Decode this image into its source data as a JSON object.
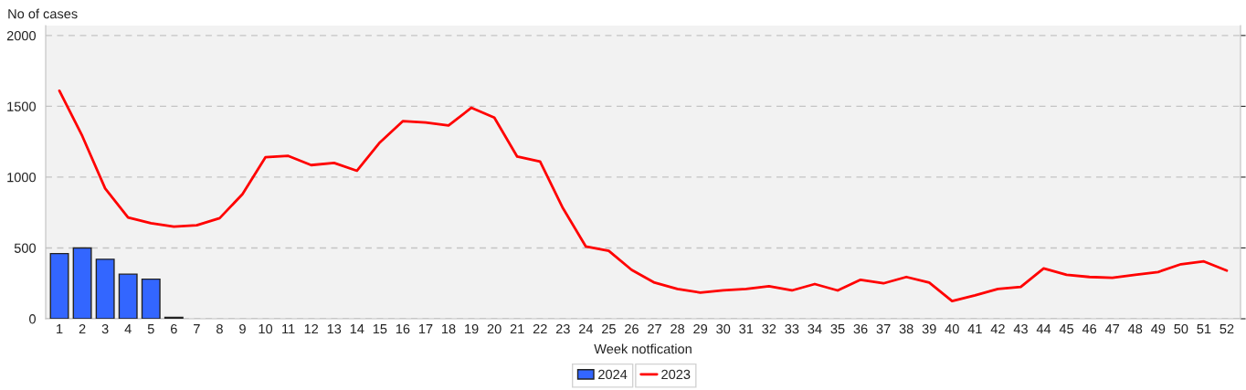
{
  "chart_data": {
    "type": "bar",
    "xlabel": "Week notfication",
    "ylabel": "No of cases",
    "categories": [
      "1",
      "2",
      "3",
      "4",
      "5",
      "6",
      "7",
      "8",
      "9",
      "10",
      "11",
      "12",
      "13",
      "14",
      "15",
      "16",
      "17",
      "18",
      "19",
      "20",
      "21",
      "22",
      "23",
      "24",
      "25",
      "26",
      "27",
      "28",
      "29",
      "30",
      "31",
      "32",
      "33",
      "34",
      "35",
      "36",
      "37",
      "38",
      "39",
      "40",
      "41",
      "42",
      "43",
      "44",
      "45",
      "46",
      "47",
      "48",
      "49",
      "50",
      "51",
      "52"
    ],
    "series": [
      {
        "name": "2024",
        "color": "#3366ff",
        "values": [
          460,
          500,
          420,
          315,
          280,
          10,
          null,
          null,
          null,
          null,
          null,
          null,
          null,
          null,
          null,
          null,
          null,
          null,
          null,
          null,
          null,
          null,
          null,
          null,
          null,
          null,
          null,
          null,
          null,
          null,
          null,
          null,
          null,
          null,
          null,
          null,
          null,
          null,
          null,
          null,
          null,
          null,
          null,
          null,
          null,
          null,
          null,
          null,
          null,
          null,
          null,
          null
        ]
      },
      {
        "name": "2023",
        "type": "line",
        "color": "#ff0000",
        "values": [
          1610,
          1290,
          920,
          715,
          675,
          650,
          660,
          710,
          880,
          1140,
          1150,
          1085,
          1100,
          1045,
          1245,
          1395,
          1385,
          1365,
          1490,
          1420,
          1145,
          1110,
          780,
          510,
          480,
          345,
          255,
          210,
          185,
          200,
          210,
          230,
          200,
          245,
          200,
          275,
          250,
          295,
          255,
          125,
          165,
          210,
          225,
          355,
          310,
          295,
          290,
          310,
          330,
          385,
          405,
          340
        ]
      }
    ],
    "ylim": [
      0,
      2070
    ],
    "yticks": [
      0,
      500,
      1000,
      1500,
      2000
    ],
    "grid": "y",
    "legend": "bottom"
  }
}
